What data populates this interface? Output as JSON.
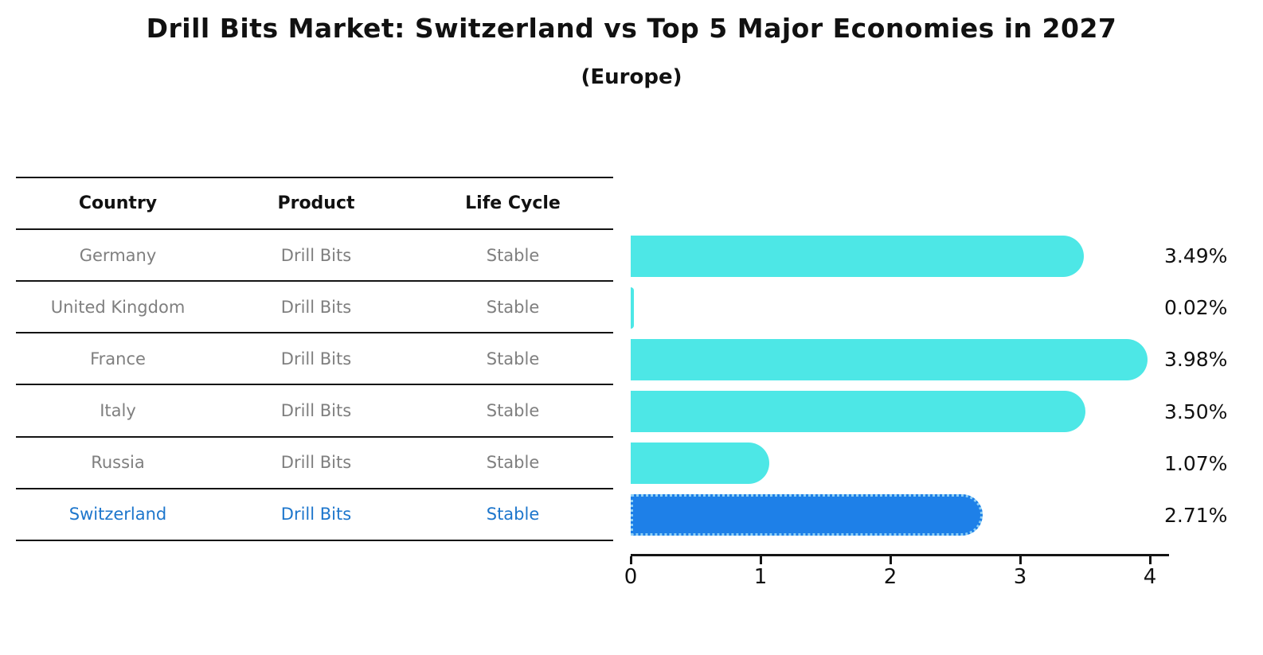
{
  "title": "Drill Bits Market: Switzerland vs Top 5 Major Economies in 2027",
  "subtitle": "(Europe)",
  "table": {
    "headers": [
      "Country",
      "Product",
      "Life Cycle"
    ],
    "rows": [
      {
        "country": "Germany",
        "product": "Drill Bits",
        "life_cycle": "Stable",
        "highlight": false
      },
      {
        "country": "United Kingdom",
        "product": "Drill Bits",
        "life_cycle": "Stable",
        "highlight": false
      },
      {
        "country": "France",
        "product": "Drill Bits",
        "life_cycle": "Stable",
        "highlight": false
      },
      {
        "country": "Italy",
        "product": "Drill Bits",
        "life_cycle": "Stable",
        "highlight": false
      },
      {
        "country": "Russia",
        "product": "Drill Bits",
        "life_cycle": "Stable",
        "highlight": false
      },
      {
        "country": "Switzerland",
        "product": "Drill Bits",
        "life_cycle": "Stable",
        "highlight": true
      }
    ]
  },
  "chart_data": {
    "type": "bar",
    "orientation": "horizontal",
    "title": "Drill Bits Market: Switzerland vs Top 5 Major Economies in 2027",
    "subtitle": "(Europe)",
    "categories": [
      "Germany",
      "United Kingdom",
      "France",
      "Italy",
      "Russia",
      "Switzerland"
    ],
    "values": [
      3.49,
      0.02,
      3.98,
      3.5,
      1.07,
      2.71
    ],
    "value_labels": [
      "3.49%",
      "0.02%",
      "3.98%",
      "3.50%",
      "1.07%",
      "2.71%"
    ],
    "xlabel": "",
    "ylabel": "",
    "xlim": [
      0,
      4.15
    ],
    "xticks": [
      0,
      1,
      2,
      3,
      4
    ],
    "grid": false,
    "legend": "none",
    "highlight_index": 5,
    "colors": {
      "bar": "#4de7e6",
      "highlight_bar": "#1e80e8",
      "highlight_border": "#8fd0f5",
      "highlight_text": "#1d76cc",
      "table_text": "#7f7f7f",
      "axis": "#141414"
    }
  }
}
